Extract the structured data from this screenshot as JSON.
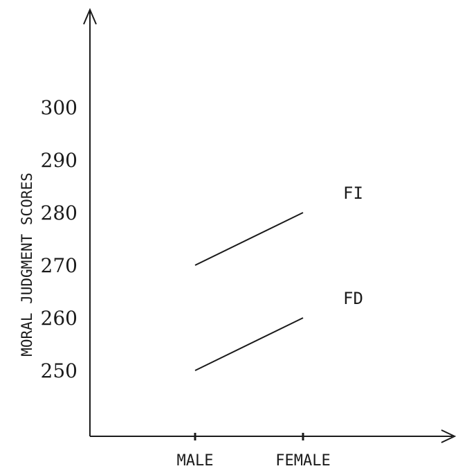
{
  "chart_data": {
    "type": "line",
    "title": "",
    "xlabel": "",
    "ylabel": "MORAL JUDGMENT SCORES",
    "categories": [
      "MALE",
      "FEMALE"
    ],
    "yticks": [
      250,
      260,
      270,
      280,
      290,
      300
    ],
    "ylim": [
      240,
      310
    ],
    "grid": false,
    "legend": "inline-right",
    "series": [
      {
        "name": "FI",
        "values": [
          270,
          280
        ]
      },
      {
        "name": "FD",
        "values": [
          250,
          260
        ]
      }
    ],
    "colors": {
      "ink": "#1a1a1a",
      "background": "#ffffff"
    }
  }
}
